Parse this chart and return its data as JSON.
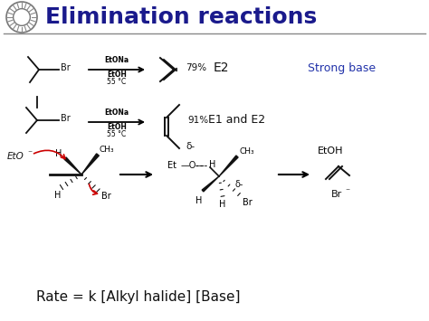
{
  "title": "Elimination reactions",
  "title_color": "#1a1a8c",
  "title_fontsize": 18,
  "background_color": "#ffffff",
  "reaction1_yield": "79%",
  "reaction1_type": "E2",
  "reaction2_yield": "91%",
  "reaction2_type": "E1 and E2",
  "strong_base": "Strong base",
  "strong_base_color": "#2233aa",
  "rate_text": "Rate = k [Alkyl halide] [Base]",
  "rate_fontsize": 11,
  "header_line_color": "#888888",
  "red": "#cc0000",
  "black": "#111111",
  "reagent_fontsize": 5.5,
  "yield_fontsize": 7.5,
  "type_fontsize": 10
}
